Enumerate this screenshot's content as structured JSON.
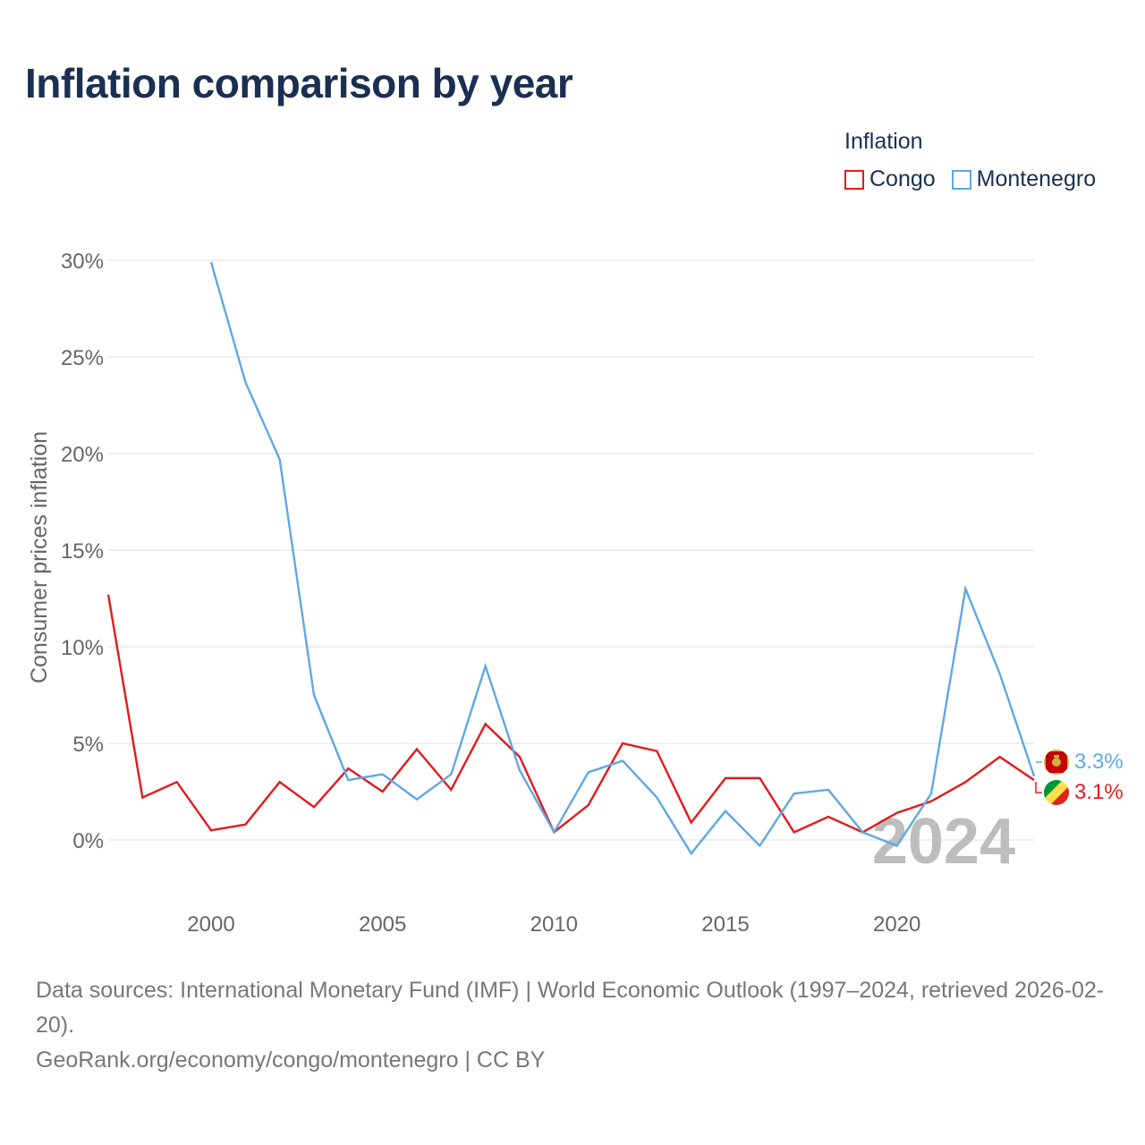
{
  "page": {
    "title": "Inflation comparison by year"
  },
  "legend": {
    "title": "Inflation",
    "items": [
      {
        "label": "Congo",
        "color": "#e31a1c"
      },
      {
        "label": "Montenegro",
        "color": "#5fa8e4"
      }
    ]
  },
  "watermark_year": "2024",
  "end_labels": {
    "montenegro": "3.3%",
    "congo": "3.1%"
  },
  "footer": {
    "sources": "Data sources: International Monetary Fund (IMF) | World Economic Outlook (1997–2024, retrieved 2026-02-20).",
    "credit": "GeoRank.org/economy/congo/montenegro | CC BY"
  },
  "chart_data": {
    "type": "line",
    "title": "Inflation comparison by year",
    "xlabel": "",
    "ylabel": "Consumer prices inflation",
    "xlim": [
      1997,
      2024
    ],
    "ylim": [
      -3,
      32
    ],
    "x_ticks": [
      2000,
      2005,
      2010,
      2015,
      2020
    ],
    "y_ticks": [
      0,
      5,
      10,
      15,
      20,
      25,
      30
    ],
    "y_tick_labels": [
      "0%",
      "5%",
      "10%",
      "15%",
      "20%",
      "25%",
      "30%"
    ],
    "grid": true,
    "legend_position": "top-right",
    "series": [
      {
        "name": "Congo",
        "color": "#e31a1c",
        "x": [
          1997,
          1998,
          1999,
          2000,
          2001,
          2002,
          2003,
          2004,
          2005,
          2006,
          2007,
          2008,
          2009,
          2010,
          2011,
          2012,
          2013,
          2014,
          2015,
          2016,
          2017,
          2018,
          2019,
          2020,
          2021,
          2022,
          2023,
          2024
        ],
        "values": [
          12.7,
          2.2,
          3.0,
          0.5,
          0.8,
          3.0,
          1.7,
          3.7,
          2.5,
          4.7,
          2.6,
          6.0,
          4.3,
          0.4,
          1.8,
          5.0,
          4.6,
          0.9,
          3.2,
          3.2,
          0.4,
          1.2,
          0.4,
          1.4,
          2.0,
          3.0,
          4.3,
          3.1
        ]
      },
      {
        "name": "Montenegro",
        "color": "#5fa8e4",
        "x": [
          2000,
          2001,
          2002,
          2003,
          2004,
          2005,
          2006,
          2007,
          2008,
          2009,
          2010,
          2011,
          2012,
          2013,
          2014,
          2015,
          2016,
          2017,
          2018,
          2019,
          2020,
          2021,
          2022,
          2023,
          2024
        ],
        "values": [
          29.9,
          23.7,
          19.7,
          7.5,
          3.1,
          3.4,
          2.1,
          3.4,
          9.0,
          3.6,
          0.4,
          3.5,
          4.1,
          2.2,
          -0.7,
          1.5,
          -0.3,
          2.4,
          2.6,
          0.4,
          -0.3,
          2.4,
          13.0,
          8.6,
          3.3
        ]
      }
    ]
  }
}
